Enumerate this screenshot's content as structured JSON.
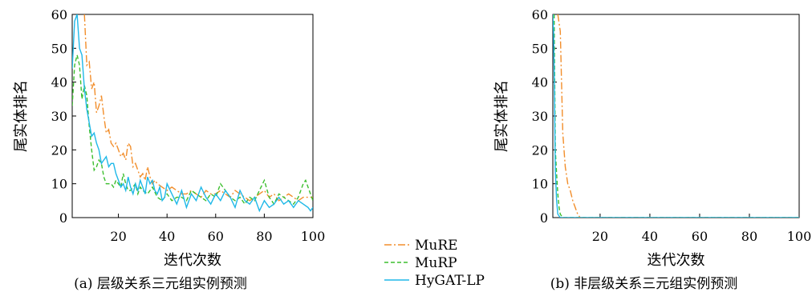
{
  "legend": {
    "position": "bottom-center",
    "entries": [
      {
        "name": "MuRE",
        "color": "#F28E2B",
        "dash": "dashdot"
      },
      {
        "name": "MuRP",
        "color": "#3CBF2E",
        "dash": "dashed"
      },
      {
        "name": "HyGAT-LP",
        "color": "#1FB8E8",
        "dash": "solid"
      }
    ]
  },
  "chart_data": [
    {
      "type": "line",
      "caption": "(a) 层级关系三元组实例预测",
      "xlabel": "迭代次数",
      "ylabel": "尾实体排名",
      "xlim": [
        1,
        100
      ],
      "ylim": [
        0,
        60
      ],
      "xticks": [
        20,
        40,
        60,
        80,
        100
      ],
      "yticks": [
        0,
        10,
        20,
        30,
        40,
        50,
        60
      ],
      "grid": false,
      "series": [
        {
          "name": "MuRE",
          "x": [
            6,
            7,
            8,
            9,
            10,
            11,
            12,
            13,
            14,
            15,
            16,
            17,
            18,
            19,
            20,
            21,
            22,
            23,
            24,
            25,
            26,
            27,
            28,
            29,
            30,
            31,
            32,
            33,
            34,
            35,
            36,
            38,
            40,
            42,
            44,
            46,
            48,
            50,
            52,
            54,
            56,
            58,
            60,
            62,
            64,
            66,
            68,
            70,
            72,
            74,
            76,
            78,
            80,
            82,
            84,
            86,
            88,
            90,
            92,
            94,
            96,
            98,
            100
          ],
          "y": [
            60,
            45,
            46,
            38,
            40,
            31,
            33,
            36,
            30,
            25,
            26,
            22,
            21,
            22,
            20,
            18,
            19,
            17,
            22,
            21,
            15,
            16,
            14,
            12,
            13,
            11,
            15,
            12,
            10,
            11,
            10,
            9,
            8,
            9,
            8,
            7,
            7,
            8,
            7,
            6,
            8,
            7,
            7,
            8,
            7,
            6,
            8,
            7,
            6,
            5,
            6,
            7,
            8,
            6,
            7,
            5,
            6,
            7,
            6,
            5,
            6,
            6,
            6
          ]
        },
        {
          "name": "MuRP",
          "x": [
            1,
            2,
            3,
            4,
            5,
            6,
            7,
            8,
            9,
            10,
            11,
            12,
            13,
            14,
            15,
            16,
            17,
            18,
            19,
            20,
            21,
            22,
            23,
            24,
            25,
            26,
            27,
            28,
            29,
            30,
            32,
            34,
            36,
            38,
            40,
            42,
            44,
            46,
            48,
            50,
            52,
            54,
            56,
            58,
            60,
            62,
            64,
            66,
            68,
            70,
            72,
            74,
            76,
            78,
            80,
            82,
            84,
            86,
            88,
            90,
            92,
            94,
            96,
            97,
            98,
            100
          ],
          "y": [
            33,
            45,
            48,
            45,
            35,
            39,
            36,
            27,
            20,
            14,
            15,
            17,
            16,
            12,
            10,
            10,
            10,
            9,
            11,
            10,
            9,
            13,
            10,
            8,
            8,
            9,
            10,
            7,
            9,
            8,
            7,
            9,
            6,
            5,
            7,
            5,
            6,
            6,
            5,
            8,
            7,
            6,
            5,
            7,
            6,
            10,
            8,
            6,
            5,
            6,
            4,
            6,
            5,
            8,
            11,
            6,
            4,
            7,
            6,
            5,
            4,
            6,
            10,
            11,
            9,
            5
          ]
        },
        {
          "name": "HyGAT-LP",
          "x": [
            1,
            2,
            3,
            4,
            5,
            6,
            7,
            8,
            9,
            10,
            11,
            12,
            13,
            14,
            15,
            16,
            17,
            18,
            19,
            20,
            21,
            22,
            23,
            24,
            25,
            26,
            27,
            28,
            29,
            30,
            31,
            32,
            33,
            34,
            35,
            36,
            37,
            38,
            39,
            40,
            42,
            44,
            46,
            48,
            50,
            52,
            54,
            56,
            58,
            60,
            62,
            64,
            66,
            68,
            70,
            72,
            74,
            76,
            78,
            80,
            82,
            84,
            86,
            88,
            90,
            92,
            94,
            96,
            98,
            99,
            100
          ],
          "y": [
            44,
            58,
            60,
            50,
            48,
            38,
            32,
            28,
            24,
            25,
            22,
            20,
            16,
            17,
            18,
            15,
            16,
            16,
            13,
            11,
            9,
            10,
            8,
            12,
            9,
            7,
            10,
            8,
            11,
            9,
            7,
            12,
            10,
            11,
            8,
            7,
            9,
            5,
            6,
            10,
            7,
            4,
            8,
            3,
            7,
            5,
            9,
            6,
            4,
            7,
            5,
            8,
            6,
            3,
            8,
            5,
            4,
            6,
            2,
            5,
            3,
            4,
            6,
            4,
            5,
            3,
            5,
            4,
            3,
            2,
            3
          ]
        }
      ]
    },
    {
      "type": "line",
      "caption": "(b) 非层级关系三元组实例预测",
      "xlabel": "迭代次数",
      "ylabel": "尾实体排名",
      "xlim": [
        1,
        100
      ],
      "ylim": [
        0,
        60
      ],
      "xticks": [
        20,
        40,
        60,
        80,
        100
      ],
      "yticks": [
        0,
        10,
        20,
        30,
        40,
        50,
        60
      ],
      "grid": false,
      "series": [
        {
          "name": "MuRE",
          "x": [
            3,
            4,
            5,
            6,
            7,
            8,
            9,
            10,
            11,
            12,
            14,
            100
          ],
          "y": [
            60,
            55,
            25,
            15,
            10,
            8,
            5,
            3,
            1,
            0,
            0,
            0
          ]
        },
        {
          "name": "MuRP",
          "x": [
            1.5,
            2,
            2.5,
            3,
            3.5,
            4,
            5,
            100
          ],
          "y": [
            60,
            20,
            13,
            7,
            3,
            1,
            0,
            0
          ]
        },
        {
          "name": "HyGAT-LP",
          "x": [
            1,
            1.3,
            1.6,
            2,
            2.5,
            3,
            4,
            100
          ],
          "y": [
            60,
            55,
            40,
            14,
            5,
            1,
            0,
            0
          ]
        }
      ]
    }
  ]
}
